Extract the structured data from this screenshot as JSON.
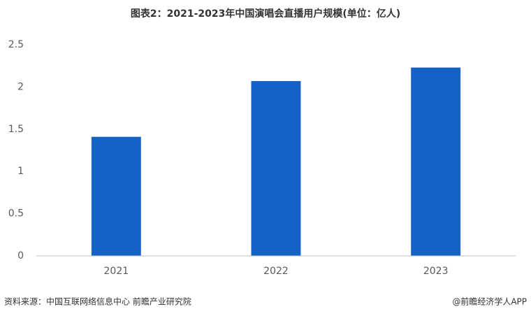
{
  "chart_data": {
    "type": "bar",
    "title": "图表2：2021-2023年中国演唱会直播用户规模(单位：亿人)",
    "categories": [
      "2021",
      "2022",
      "2023"
    ],
    "values": [
      1.41,
      2.07,
      2.23
    ],
    "color": "#1561c6",
    "ylim": [
      0,
      2.5
    ],
    "yticks": [
      0,
      0.5,
      1,
      1.5,
      2,
      2.5
    ],
    "grid": false,
    "source": "资料来源：中国互联网络信息中心 前瞻产业研究院",
    "credit": "@前瞻经济学人APP"
  }
}
